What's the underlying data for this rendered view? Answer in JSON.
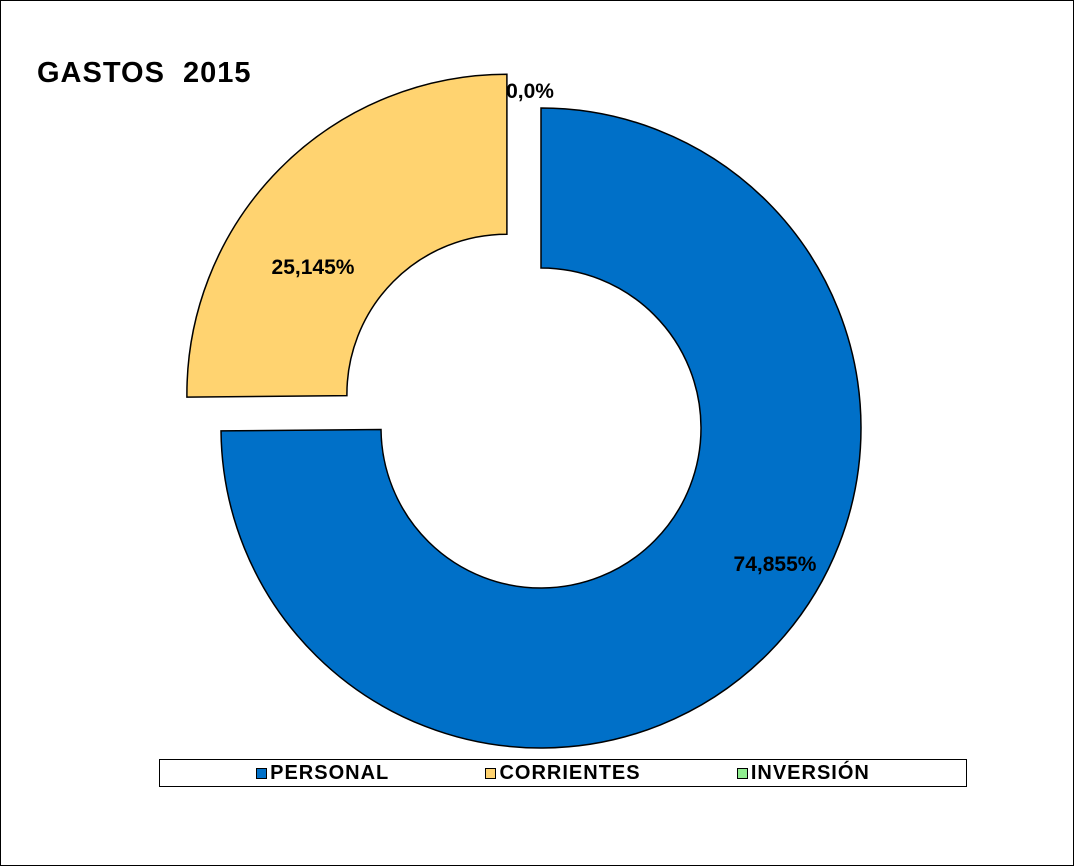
{
  "chart_data": {
    "type": "pie",
    "variant": "donut",
    "title": "GASTOS  2015",
    "categories": [
      "PERSONAL",
      "CORRIENTES",
      "INVERSIÓN"
    ],
    "values": [
      74.855,
      25.145,
      0.0
    ],
    "value_labels": [
      "74,855%",
      "25,145%",
      "0,0%"
    ],
    "colors": [
      "#0070C8",
      "#FFD370",
      "#90EE90"
    ],
    "legend_position": "bottom",
    "exploded": true
  }
}
